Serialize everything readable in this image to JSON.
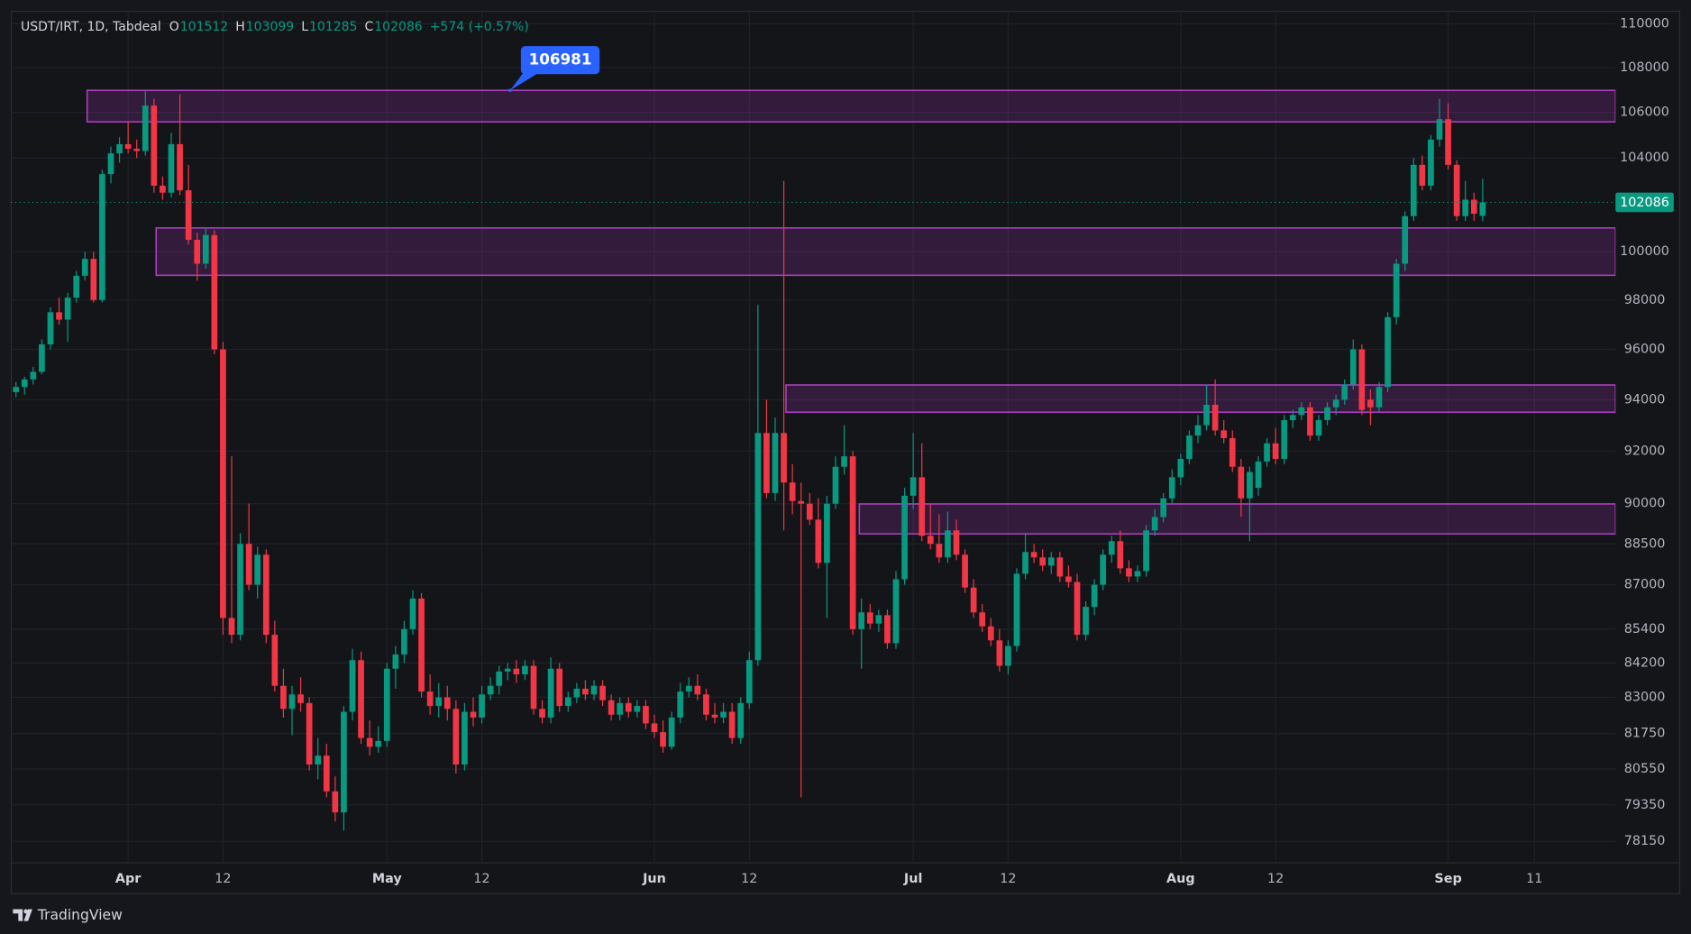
{
  "chart_data": {
    "type": "candlestick",
    "title": "USDT/IRT, 1D, Tabdeal",
    "ohlc": [
      {
        "label": "O",
        "value": 101512
      },
      {
        "label": "H",
        "value": 103099
      },
      {
        "label": "L",
        "value": 101285
      },
      {
        "label": "C",
        "value": 102086
      }
    ],
    "change": "+574 (+0.57%)",
    "log_scale": true,
    "grid": true,
    "up_color": "#089981",
    "down_color": "#f23645",
    "zone_color": "#b03ec4",
    "ylim": [
      77450,
      110600
    ],
    "yticks": [
      110000,
      108000,
      106000,
      104000,
      100000,
      98000,
      96000,
      94000,
      92000,
      90000,
      88500,
      87000,
      85400,
      84200,
      83000,
      81750,
      80550,
      79350,
      78150
    ],
    "xlim": [
      -0.6,
      185.4
    ],
    "xticks": [
      {
        "value": 13,
        "label": "Apr"
      },
      {
        "value": 24,
        "label": "12"
      },
      {
        "value": 43,
        "label": "May"
      },
      {
        "value": 54,
        "label": "12"
      },
      {
        "value": 74,
        "label": "Jun"
      },
      {
        "value": 85,
        "label": "12"
      },
      {
        "value": 104,
        "label": "Jul"
      },
      {
        "value": 115,
        "label": "12"
      },
      {
        "value": 135,
        "label": "Aug"
      },
      {
        "value": 146,
        "label": "12"
      },
      {
        "value": 166,
        "label": "Sep"
      },
      {
        "value": 176,
        "label": "11"
      }
    ],
    "last_price": 102086,
    "annotation": {
      "value": 106981
    },
    "zones": [
      {
        "from": 8.25,
        "high": 106981,
        "low": 105580
      },
      {
        "from": 16.25,
        "high": 101000,
        "low": 99020
      },
      {
        "from": 89.25,
        "high": 94580,
        "low": 93510
      },
      {
        "from": 97.75,
        "high": 89990,
        "low": 88870
      }
    ],
    "candles": [
      [
        94300,
        94700,
        94100,
        94500
      ],
      [
        94500,
        94900,
        94200,
        94800
      ],
      [
        94800,
        95300,
        94600,
        95100
      ],
      [
        95100,
        96400,
        95000,
        96200
      ],
      [
        96200,
        97700,
        96000,
        97500
      ],
      [
        97500,
        98100,
        97000,
        97200
      ],
      [
        97200,
        98300,
        96300,
        98100
      ],
      [
        98100,
        99200,
        97900,
        99000
      ],
      [
        99000,
        100000,
        98800,
        99700
      ],
      [
        99700,
        100000,
        97900,
        98000
      ],
      [
        98000,
        103500,
        97900,
        103300
      ],
      [
        103300,
        104500,
        102900,
        104200
      ],
      [
        104200,
        104900,
        103800,
        104600
      ],
      [
        104600,
        105600,
        104200,
        104400
      ],
      [
        104400,
        104800,
        104000,
        104300
      ],
      [
        104300,
        107000,
        104100,
        106300
      ],
      [
        106300,
        106600,
        102500,
        102800
      ],
      [
        102800,
        103200,
        102200,
        102500
      ],
      [
        102500,
        105100,
        102300,
        104600
      ],
      [
        104600,
        106800,
        102400,
        102600
      ],
      [
        102600,
        103700,
        100300,
        100500
      ],
      [
        100500,
        100800,
        98800,
        99500
      ],
      [
        99500,
        101000,
        99300,
        100700
      ],
      [
        100700,
        100900,
        95800,
        96000
      ],
      [
        96000,
        96300,
        85200,
        85800
      ],
      [
        85800,
        91800,
        84900,
        85200
      ],
      [
        85200,
        88900,
        85000,
        88500
      ],
      [
        88500,
        90000,
        86800,
        87000
      ],
      [
        87000,
        88400,
        86500,
        88100
      ],
      [
        88100,
        88300,
        84900,
        85200
      ],
      [
        85200,
        85700,
        83200,
        83400
      ],
      [
        83400,
        84000,
        82300,
        82600
      ],
      [
        82600,
        83400,
        81700,
        83100
      ],
      [
        83100,
        83700,
        82500,
        82800
      ],
      [
        82800,
        83000,
        80500,
        80700
      ],
      [
        80700,
        81600,
        80200,
        81000
      ],
      [
        81000,
        81400,
        79600,
        79800
      ],
      [
        79800,
        80300,
        78800,
        79100
      ],
      [
        79100,
        82700,
        78500,
        82500
      ],
      [
        82500,
        84700,
        82200,
        84300
      ],
      [
        84300,
        84600,
        81400,
        81600
      ],
      [
        81600,
        82200,
        81000,
        81300
      ],
      [
        81300,
        82000,
        81100,
        81500
      ],
      [
        81500,
        84200,
        81300,
        84000
      ],
      [
        84000,
        84800,
        83300,
        84500
      ],
      [
        84500,
        85700,
        84200,
        85400
      ],
      [
        85400,
        86800,
        85200,
        86500
      ],
      [
        86500,
        86700,
        83000,
        83200
      ],
      [
        83200,
        83800,
        82400,
        82700
      ],
      [
        82700,
        83500,
        82300,
        83000
      ],
      [
        83000,
        83400,
        82200,
        82600
      ],
      [
        82600,
        82900,
        80400,
        80700
      ],
      [
        80700,
        82800,
        80500,
        82500
      ],
      [
        82500,
        83000,
        82000,
        82300
      ],
      [
        82300,
        83400,
        82100,
        83100
      ],
      [
        83100,
        83700,
        82900,
        83400
      ],
      [
        83400,
        84100,
        83100,
        83900
      ],
      [
        83900,
        84200,
        83600,
        84000
      ],
      [
        84000,
        84300,
        83500,
        83800
      ],
      [
        83800,
        84300,
        83600,
        84100
      ],
      [
        84100,
        84300,
        82400,
        82600
      ],
      [
        82600,
        82900,
        82100,
        82300
      ],
      [
        82300,
        84400,
        82100,
        84000
      ],
      [
        84000,
        84200,
        82500,
        82700
      ],
      [
        82700,
        83200,
        82500,
        83000
      ],
      [
        83000,
        83500,
        82800,
        83300
      ],
      [
        83300,
        83600,
        82900,
        83100
      ],
      [
        83100,
        83600,
        82900,
        83400
      ],
      [
        83400,
        83600,
        82700,
        82900
      ],
      [
        82900,
        83100,
        82200,
        82400
      ],
      [
        82400,
        83000,
        82200,
        82800
      ],
      [
        82800,
        83000,
        82300,
        82500
      ],
      [
        82500,
        82900,
        82300,
        82700
      ],
      [
        82700,
        82900,
        81900,
        82100
      ],
      [
        82100,
        82400,
        81600,
        81800
      ],
      [
        81800,
        82200,
        81100,
        81300
      ],
      [
        81300,
        82500,
        81200,
        82300
      ],
      [
        82300,
        83500,
        82100,
        83200
      ],
      [
        83200,
        83700,
        83000,
        83400
      ],
      [
        83400,
        83800,
        82900,
        83100
      ],
      [
        83100,
        83300,
        82200,
        82400
      ],
      [
        82400,
        82800,
        82100,
        82300
      ],
      [
        82300,
        82800,
        82100,
        82500
      ],
      [
        82500,
        82800,
        81400,
        81600
      ],
      [
        81600,
        83000,
        81400,
        82800
      ],
      [
        82800,
        84600,
        82600,
        84300
      ],
      [
        84300,
        97800,
        84100,
        92700
      ],
      [
        92700,
        94000,
        90200,
        90400
      ],
      [
        90400,
        93300,
        90100,
        92700
      ],
      [
        92700,
        103000,
        89000,
        90800
      ],
      [
        90800,
        91500,
        89600,
        90100
      ],
      [
        90100,
        90800,
        79600,
        90000
      ],
      [
        90000,
        90400,
        89200,
        89400
      ],
      [
        89400,
        90200,
        87600,
        87800
      ],
      [
        87800,
        90300,
        85800,
        90000
      ],
      [
        90000,
        91800,
        89800,
        91400
      ],
      [
        91400,
        93000,
        91100,
        91800
      ],
      [
        91800,
        92000,
        85200,
        85400
      ],
      [
        85400,
        86500,
        84000,
        86000
      ],
      [
        86000,
        86300,
        85400,
        85600
      ],
      [
        85600,
        86100,
        85300,
        85900
      ],
      [
        85900,
        86100,
        84700,
        84900
      ],
      [
        84900,
        87500,
        84700,
        87200
      ],
      [
        87200,
        90600,
        87000,
        90300
      ],
      [
        90300,
        92700,
        89800,
        91000
      ],
      [
        91000,
        92300,
        88600,
        88800
      ],
      [
        88800,
        90000,
        88300,
        88500
      ],
      [
        88500,
        89600,
        87800,
        88000
      ],
      [
        88000,
        89700,
        87800,
        89000
      ],
      [
        89000,
        89400,
        87900,
        88100
      ],
      [
        88100,
        88300,
        86700,
        86900
      ],
      [
        86900,
        87200,
        85800,
        86000
      ],
      [
        86000,
        86300,
        85300,
        85500
      ],
      [
        85500,
        85800,
        84800,
        85000
      ],
      [
        85000,
        85400,
        83900,
        84100
      ],
      [
        84100,
        85000,
        83800,
        84800
      ],
      [
        84800,
        87600,
        84600,
        87400
      ],
      [
        87400,
        88900,
        87200,
        88200
      ],
      [
        88200,
        88500,
        87800,
        88000
      ],
      [
        88000,
        88300,
        87500,
        87700
      ],
      [
        87700,
        88200,
        87400,
        88000
      ],
      [
        88000,
        88200,
        87100,
        87300
      ],
      [
        87300,
        87700,
        86900,
        87100
      ],
      [
        87100,
        87400,
        85000,
        85200
      ],
      [
        85200,
        86400,
        85000,
        86200
      ],
      [
        86200,
        87200,
        85900,
        87000
      ],
      [
        87000,
        88300,
        86800,
        88100
      ],
      [
        88100,
        88800,
        87800,
        88600
      ],
      [
        88600,
        89000,
        87400,
        87600
      ],
      [
        87600,
        87900,
        87100,
        87300
      ],
      [
        87300,
        87700,
        87100,
        87500
      ],
      [
        87500,
        89200,
        87300,
        89000
      ],
      [
        89000,
        89800,
        88800,
        89500
      ],
      [
        89500,
        90400,
        89300,
        90200
      ],
      [
        90200,
        91300,
        90000,
        91000
      ],
      [
        91000,
        91900,
        90700,
        91700
      ],
      [
        91700,
        92800,
        91500,
        92600
      ],
      [
        92600,
        93400,
        92300,
        93000
      ],
      [
        93000,
        94600,
        92800,
        93800
      ],
      [
        93800,
        94800,
        92600,
        92800
      ],
      [
        92800,
        93200,
        92300,
        92500
      ],
      [
        92500,
        92800,
        91200,
        91400
      ],
      [
        91400,
        91700,
        89500,
        90200
      ],
      [
        90200,
        91400,
        88600,
        91200
      ],
      [
        90600,
        91800,
        90300,
        91600
      ],
      [
        91600,
        92500,
        91400,
        92300
      ],
      [
        92300,
        92900,
        91500,
        91700
      ],
      [
        91700,
        93400,
        91500,
        93200
      ],
      [
        93200,
        93600,
        92900,
        93400
      ],
      [
        93400,
        93900,
        93200,
        93700
      ],
      [
        93700,
        93900,
        92400,
        92600
      ],
      [
        92600,
        93400,
        92400,
        93200
      ],
      [
        93200,
        93900,
        93000,
        93700
      ],
      [
        93700,
        94200,
        93400,
        94000
      ],
      [
        94000,
        94800,
        93800,
        94600
      ],
      [
        94600,
        96400,
        94400,
        96000
      ],
      [
        96000,
        96200,
        93400,
        93600
      ],
      [
        94000,
        94400,
        93000,
        93700
      ],
      [
        93700,
        94700,
        93500,
        94500
      ],
      [
        94500,
        97500,
        94300,
        97300
      ],
      [
        97300,
        99700,
        97000,
        99500
      ],
      [
        99500,
        101700,
        99200,
        101500
      ],
      [
        101500,
        104000,
        101300,
        103700
      ],
      [
        103700,
        104100,
        102600,
        102800
      ],
      [
        102800,
        105000,
        102600,
        104800
      ],
      [
        104800,
        106600,
        104500,
        105700
      ],
      [
        105700,
        106400,
        103500,
        103700
      ],
      [
        103700,
        103900,
        101300,
        101500
      ],
      [
        101500,
        103000,
        101300,
        102200
      ],
      [
        102200,
        102500,
        101300,
        101600
      ],
      [
        101512,
        103099,
        101285,
        102086
      ]
    ]
  },
  "footer": {
    "brand": "TradingView"
  }
}
